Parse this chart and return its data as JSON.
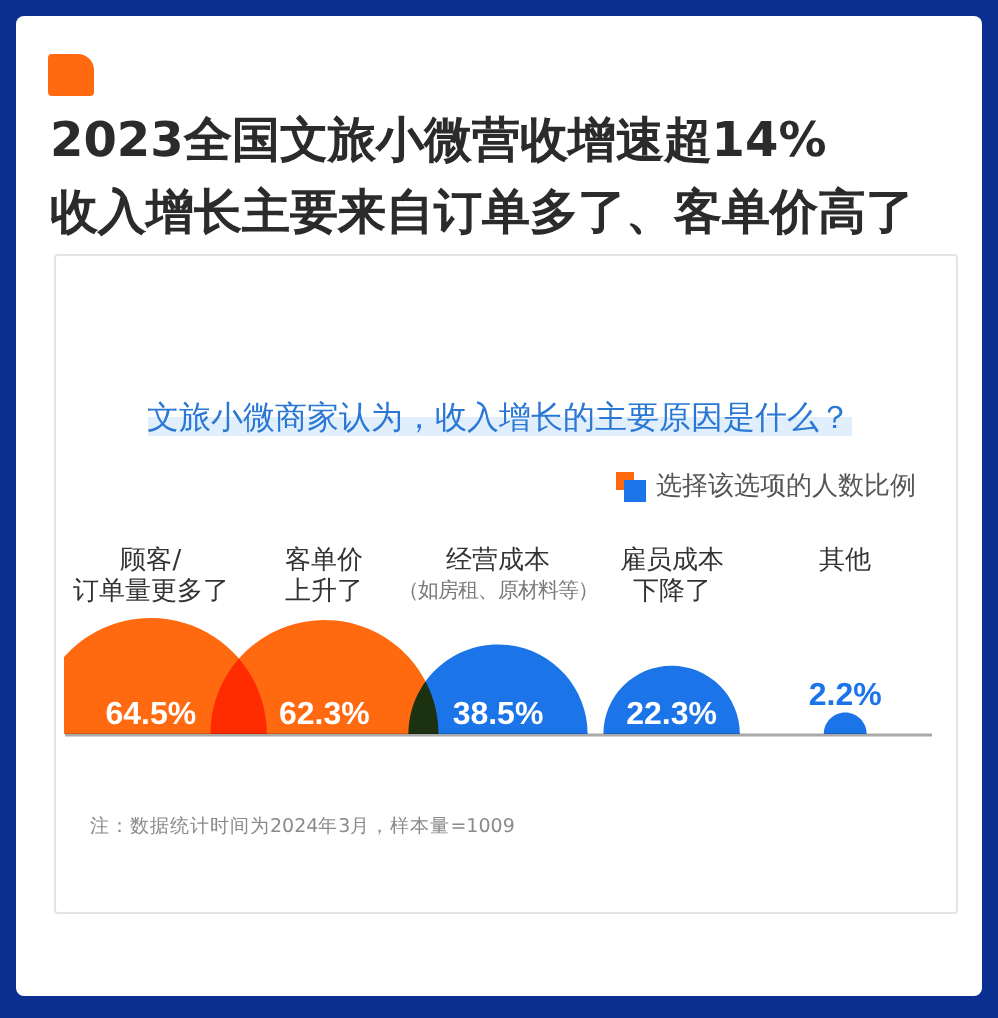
{
  "chart_data": {
    "type": "other",
    "title": "2023全国文旅小微营收增速超14%\n收入增长主要来自订单多了、客单价高了",
    "subtitle": "文旅小微商家认为，收入增长的主要原因是什么？",
    "legend_title": "选择该选项的人数比例",
    "categories": [
      "顾客/订单量更多了",
      "客单价上升了",
      "经营成本（如房租、原材料等）",
      "雇员成本下降了",
      "其他"
    ],
    "values": [
      64.5,
      62.3,
      38.5,
      22.3,
      2.2
    ],
    "value_labels": [
      "64.5%",
      "62.3%",
      "38.5%",
      "22.3%",
      "2.2%"
    ],
    "colors": [
      "#ff6a10",
      "#ff6a10",
      "#1b74e8",
      "#1b74e8",
      "#1b74e8"
    ],
    "annotations": [
      "注：数据统计时间为2024年3月，样本量=1009"
    ]
  }
}
